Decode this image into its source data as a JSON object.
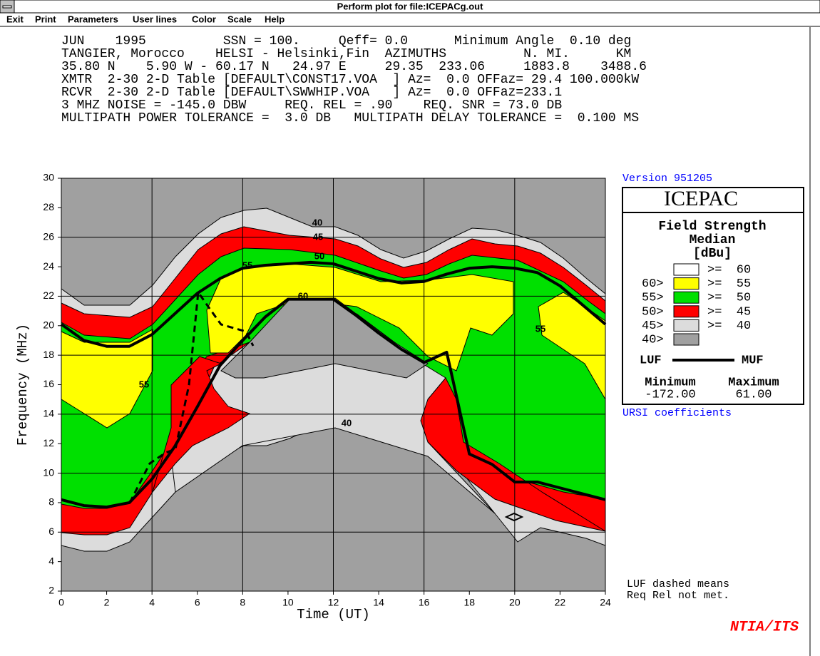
{
  "window": {
    "title": "Perform plot for file:ICEPACg.out",
    "menu": [
      "Exit",
      "Print",
      "Parameters",
      "User lines",
      "Color",
      "Scale",
      "Help"
    ]
  },
  "header_lines": [
    "JUN    1995          SSN = 100.     Qeff= 0.0      Minimum Angle  0.10 deg",
    "TANGIER, Morocco    HELSI - Helsinki,Fin  AZIMUTHS          N. MI.      KM",
    "35.80 N    5.90 W - 60.17 N   24.97 E     29.35  233.06     1883.8    3488.6",
    "XMTR  2-30 2-D Table [DEFAULT\\CONST17.VOA  ] Az=  0.0 OFFaz= 29.4 100.000kW",
    "RCVR  2-30 2-D Table [DEFAULT\\SWWHIP.VOA   ] Az=  0.0 OFFaz=233.1",
    "3 MHZ NOISE = -145.0 DBW     REQ. REL = .90    REQ. SNR = 73.0 DB",
    "MULTIPATH POWER TOLERANCE =  3.0 DB   MULTIPATH DELAY TOLERANCE =  0.100 MS"
  ],
  "chart_data": {
    "type": "line",
    "xlabel": "Time (UT)",
    "ylabel": "Frequency (MHz)",
    "xlim": [
      0,
      24
    ],
    "xticks": [
      0,
      2,
      4,
      6,
      8,
      10,
      12,
      14,
      16,
      18,
      20,
      22,
      24
    ],
    "ylim": [
      2,
      30
    ],
    "yticks": [
      2,
      4,
      6,
      8,
      10,
      12,
      14,
      16,
      18,
      20,
      22,
      24,
      26,
      28,
      30
    ],
    "x": [
      0,
      1,
      2,
      3,
      4,
      5,
      6,
      7,
      8,
      9,
      10,
      11,
      12,
      13,
      14,
      15,
      16,
      17,
      18,
      19,
      20,
      21,
      22,
      23,
      24
    ],
    "series": [
      {
        "name": "LUF",
        "color": "#000000",
        "values": [
          8.2,
          7.8,
          7.7,
          8.0,
          9.6,
          11.8,
          14.5,
          17.3,
          19.0,
          20.6,
          21.8,
          21.8,
          21.8,
          20.7,
          19.5,
          18.4,
          17.5,
          18.2,
          11.3,
          10.6,
          9.4,
          9.4,
          9.0,
          8.6,
          8.2
        ]
      },
      {
        "name": "MUF",
        "color": "#000000",
        "values": [
          20.1,
          19.0,
          18.6,
          18.6,
          19.4,
          20.8,
          22.2,
          23.2,
          23.9,
          24.1,
          24.2,
          24.3,
          24.2,
          23.7,
          23.2,
          22.9,
          23.0,
          23.5,
          23.9,
          24.0,
          23.9,
          23.6,
          22.7,
          21.4,
          20.1
        ]
      }
    ],
    "contour_labels": [
      "40",
      "45",
      "50",
      "55",
      "60",
      "55",
      "55",
      "40"
    ]
  },
  "legend": {
    "version": "Version 951205",
    "brand": "ICEPAC",
    "heading": [
      "Field Strength",
      "Median",
      "[dBu]"
    ],
    "entries": [
      {
        "color": "#ffffff",
        "label": ">=  60"
      },
      {
        "prefix": "60>",
        "color": "#ffff00",
        "label": ">=  55"
      },
      {
        "prefix": "55>",
        "color": "#00e000",
        "label": ">=  50"
      },
      {
        "prefix": "50>",
        "color": "#ff0000",
        "label": ">=  45"
      },
      {
        "prefix": "45>",
        "color": "#dcdcdc",
        "label": ">=  40"
      },
      {
        "prefix": "40>",
        "color": "#a0a0a0"
      }
    ],
    "min_label": "Minimum",
    "min": "-172.00",
    "max_label": "Maximum",
    "max": "61.00"
  },
  "ursi": "URSI coefficients",
  "note": [
    "LUF dashed means",
    "Req Rel not met."
  ],
  "footer": "NTIA/ITS"
}
